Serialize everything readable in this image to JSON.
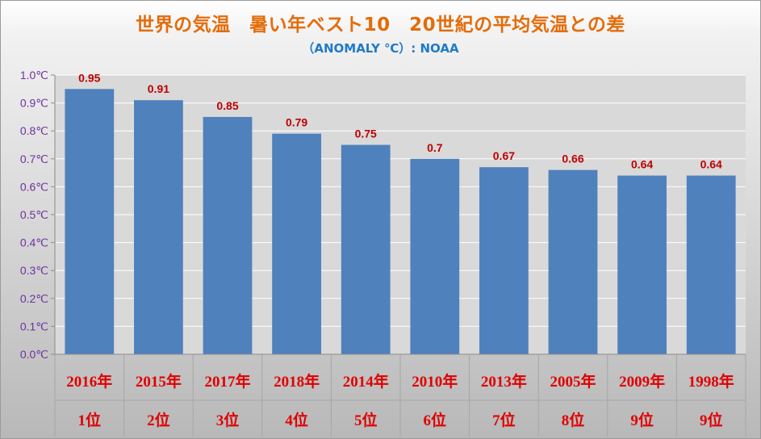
{
  "title": "世界の気温　暑い年ベスト10　20世紀の平均気温との差",
  "subtitle": "（ANOMALY ℃）: NOAA",
  "colors": {
    "bar": "#4f81bd",
    "title": "#e46c0a",
    "subtitle": "#1f7ac9",
    "ytick": "#7030a0",
    "data_label": "#c00000",
    "category": "#e00000"
  },
  "chart_data": {
    "type": "bar",
    "categories": [
      "2016年",
      "2015年",
      "2017年",
      "2018年",
      "2014年",
      "2010年",
      "2013年",
      "2005年",
      "2009年",
      "1998年"
    ],
    "ranks": [
      "1位",
      "2位",
      "3位",
      "4位",
      "5位",
      "6位",
      "7位",
      "8位",
      "9位",
      "9位"
    ],
    "values": [
      0.95,
      0.91,
      0.85,
      0.79,
      0.75,
      0.7,
      0.67,
      0.66,
      0.64,
      0.64
    ],
    "value_labels": [
      "0.95",
      "0.91",
      "0.85",
      "0.79",
      "0.75",
      "0.7",
      "0.67",
      "0.66",
      "0.64",
      "0.64"
    ],
    "ylim": [
      0,
      1.0
    ],
    "yticks": [
      0,
      0.1,
      0.2,
      0.3,
      0.4,
      0.5,
      0.6,
      0.7,
      0.8,
      0.9,
      1.0
    ],
    "ytick_labels": [
      "0.0℃",
      "0.1℃",
      "0.2℃",
      "0.3℃",
      "0.4℃",
      "0.5℃",
      "0.6℃",
      "0.7℃",
      "0.8℃",
      "0.9℃",
      "1.0℃"
    ],
    "grid": true,
    "title": "世界の気温　暑い年ベスト10　20世紀の平均気温との差",
    "xlabel": "",
    "ylabel": ""
  }
}
